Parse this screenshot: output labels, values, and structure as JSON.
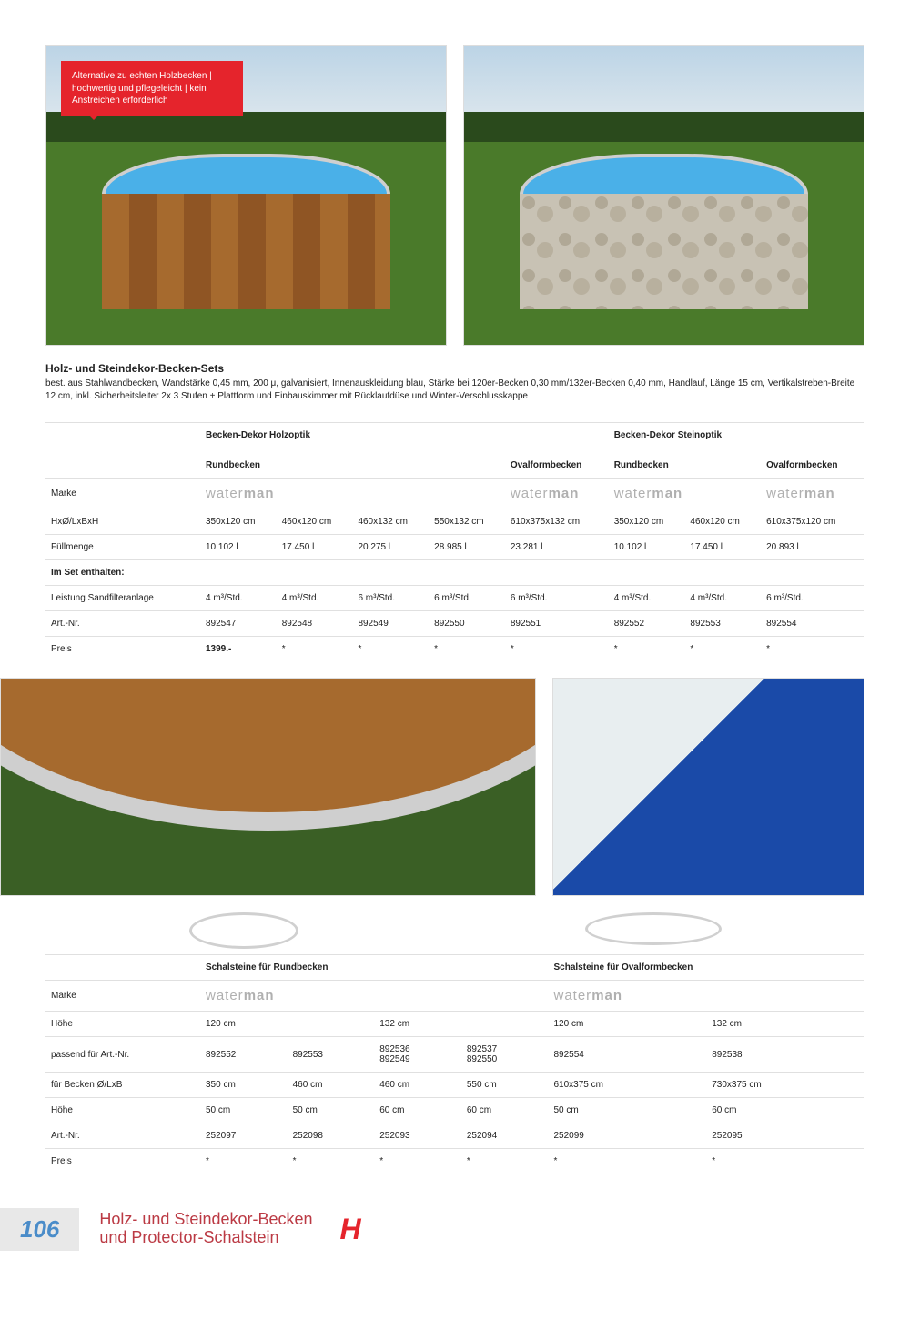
{
  "callout": "Alternative zu echten Holzbecken | hochwertig und pflegeleicht | kein Anstreichen erforderlich",
  "section1": {
    "title": "Holz- und Steindekor-Becken-Sets",
    "desc": "best. aus Stahlwandbecken, Wandstärke 0,45 mm, 200 μ, galvanisiert, Innenauskleidung blau, Stärke bei 120er-Becken 0,30 mm/132er-Becken 0,40 mm, Handlauf, Länge 15 cm, Vertikalstreben-Breite 12 cm, inkl. Sicherheitsleiter 2x 3 Stufen + Plattform und Einbauskimmer mit Rücklaufdüse und Winter-Verschlusskappe"
  },
  "t1": {
    "groupA": "Becken-Dekor Holzoptik",
    "groupB": "Becken-Dekor Steinoptik",
    "sub1": "Rundbecken",
    "sub2": "Ovalformbecken",
    "sub3": "Rundbecken",
    "sub4": "Ovalformbecken",
    "r_marke": "Marke",
    "r_dim": "HxØ/LxBxH",
    "dim": [
      "350x120 cm",
      "460x120 cm",
      "460x132 cm",
      "550x132 cm",
      "610x375x132 cm",
      "350x120 cm",
      "460x120 cm",
      "610x375x120 cm"
    ],
    "r_full": "Füllmenge",
    "full": [
      "10.102 l",
      "17.450 l",
      "20.275 l",
      "28.985 l",
      "23.281 l",
      "10.102 l",
      "17.450 l",
      "20.893 l"
    ],
    "r_set": "Im Set enthalten:",
    "r_sand": "Leistung Sandfilteranlage",
    "sand": [
      "4 m³/Std.",
      "4 m³/Std.",
      "6 m³/Std.",
      "6 m³/Std.",
      "6 m³/Std.",
      "4 m³/Std.",
      "4 m³/Std.",
      "6 m³/Std."
    ],
    "r_art": "Art.-Nr.",
    "art": [
      "892547",
      "892548",
      "892549",
      "892550",
      "892551",
      "892552",
      "892553",
      "892554"
    ],
    "r_price": "Preis",
    "price": [
      "1399.-",
      "*",
      "*",
      "*",
      "*",
      "*",
      "*",
      "*"
    ]
  },
  "t2": {
    "groupA": "Schalsteine für Rundbecken",
    "groupB": "Schalsteine für Ovalformbecken",
    "r_marke": "Marke",
    "r_hohe": "Höhe",
    "hohe1": [
      "120 cm",
      "",
      "132 cm",
      "",
      "120 cm",
      "132 cm"
    ],
    "r_pass": "passend für Art.-Nr.",
    "pass": [
      "892552",
      "892553",
      "892536\n892549",
      "892537\n892550",
      "892554",
      "892538"
    ],
    "r_becken": "für Becken Ø/LxB",
    "becken": [
      "350 cm",
      "460 cm",
      "460 cm",
      "550 cm",
      "610x375 cm",
      "730x375 cm"
    ],
    "r_hohe2": "Höhe",
    "hohe2": [
      "50 cm",
      "50 cm",
      "60 cm",
      "60 cm",
      "50 cm",
      "60 cm"
    ],
    "r_art": "Art.-Nr.",
    "art": [
      "252097",
      "252098",
      "252093",
      "252094",
      "252099",
      "252095"
    ],
    "r_price": "Preis",
    "price": [
      "*",
      "*",
      "*",
      "*",
      "*",
      "*"
    ]
  },
  "footer": {
    "page": "106",
    "title": "Holz- und Steindekor-Becken\nund Protector-Schalstein"
  }
}
